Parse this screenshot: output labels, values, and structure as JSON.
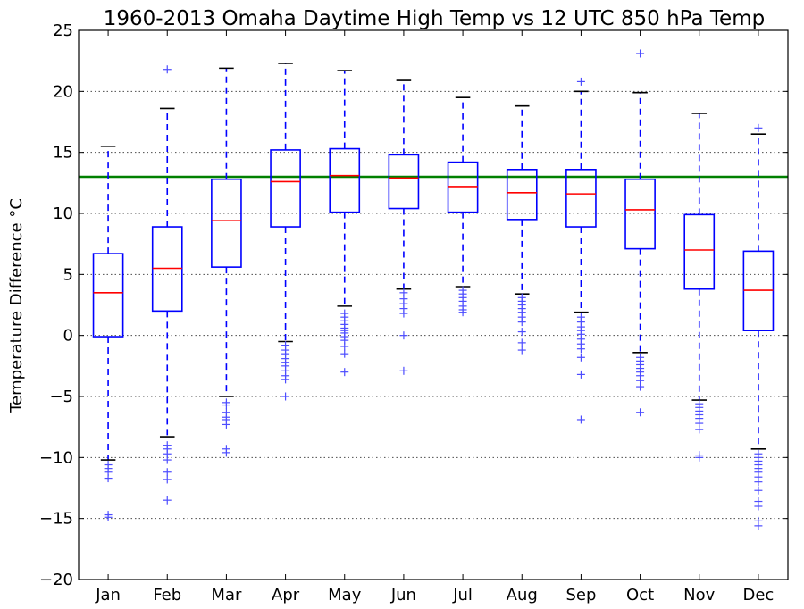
{
  "chart_data": {
    "type": "box",
    "title": "1960-2013 Omaha Daytime High Temp vs 12 UTC 850 hPa Temp",
    "xlabel": "",
    "ylabel": "Temperature Difference °C",
    "ylim": [
      -20,
      25
    ],
    "yticks": [
      -20,
      -15,
      -10,
      -5,
      0,
      5,
      10,
      15,
      20,
      25
    ],
    "grid": "horizontal dotted",
    "reference_line": {
      "y": 13.0,
      "color": "#008000"
    },
    "colors": {
      "box": "#0000ff",
      "median": "#ff0000",
      "whisker": "#0000ff",
      "cap": "#000000",
      "flier": "#4d4dff"
    },
    "categories": [
      "Jan",
      "Feb",
      "Mar",
      "Apr",
      "May",
      "Jun",
      "Jul",
      "Aug",
      "Sep",
      "Oct",
      "Nov",
      "Dec"
    ],
    "boxes": [
      {
        "label": "Jan",
        "whislo": -10.2,
        "q1": -0.1,
        "med": 3.5,
        "q3": 6.7,
        "whishi": 15.5,
        "fliers": [
          -10.6,
          -10.9,
          -11.2,
          -11.7,
          -14.7,
          -14.9
        ]
      },
      {
        "label": "Feb",
        "whislo": -8.3,
        "q1": 2.0,
        "med": 5.5,
        "q3": 8.9,
        "whishi": 18.6,
        "fliers": [
          21.8,
          -9.0,
          -9.3,
          -9.7,
          -10.2,
          -11.2,
          -11.8,
          -13.5
        ]
      },
      {
        "label": "Mar",
        "whislo": -5.0,
        "q1": 5.6,
        "med": 9.4,
        "q3": 12.8,
        "whishi": 21.9,
        "fliers": [
          -5.5,
          -5.7,
          -6.3,
          -6.7,
          -6.9,
          -7.3,
          -9.3,
          -9.6
        ]
      },
      {
        "label": "Apr",
        "whislo": -0.5,
        "q1": 8.9,
        "med": 12.6,
        "q3": 15.2,
        "whishi": 22.3,
        "fliers": [
          -0.8,
          -1.2,
          -1.5,
          -1.9,
          -2.2,
          -2.5,
          -2.9,
          -3.3,
          -3.6,
          -5.0
        ]
      },
      {
        "label": "May",
        "whislo": 2.4,
        "q1": 10.1,
        "med": 13.1,
        "q3": 15.3,
        "whishi": 21.7,
        "fliers": [
          1.8,
          1.5,
          1.2,
          0.9,
          0.6,
          0.4,
          0.2,
          -0.1,
          -0.4,
          -0.9,
          -1.5,
          -3.0
        ]
      },
      {
        "label": "Jun",
        "whislo": 3.8,
        "q1": 10.4,
        "med": 12.9,
        "q3": 14.8,
        "whishi": 20.9,
        "fliers": [
          3.5,
          3.0,
          2.6,
          2.2,
          1.8,
          0.0,
          -2.9
        ]
      },
      {
        "label": "Jul",
        "whislo": 4.0,
        "q1": 10.1,
        "med": 12.2,
        "q3": 14.2,
        "whishi": 19.5,
        "fliers": [
          3.7,
          3.4,
          3.1,
          2.8,
          2.4,
          2.1,
          1.9
        ]
      },
      {
        "label": "Aug",
        "whislo": 3.4,
        "q1": 9.5,
        "med": 11.7,
        "q3": 13.6,
        "whishi": 18.8,
        "fliers": [
          3.1,
          2.8,
          2.5,
          2.2,
          1.9,
          1.5,
          1.1,
          0.3,
          -0.6,
          -1.2
        ]
      },
      {
        "label": "Sep",
        "whislo": 1.9,
        "q1": 8.9,
        "med": 11.6,
        "q3": 13.6,
        "whishi": 20.0,
        "fliers": [
          20.8,
          1.5,
          1.1,
          0.7,
          0.4,
          0.1,
          -0.3,
          -0.7,
          -1.1,
          -1.8,
          -3.2,
          -6.9
        ]
      },
      {
        "label": "Oct",
        "whislo": -1.4,
        "q1": 7.1,
        "med": 10.3,
        "q3": 12.8,
        "whishi": 19.9,
        "fliers": [
          23.1,
          -1.8,
          -2.1,
          -2.4,
          -2.7,
          -3.0,
          -3.3,
          -3.7,
          -4.2,
          -6.3
        ]
      },
      {
        "label": "Nov",
        "whislo": -5.3,
        "q1": 3.8,
        "med": 7.0,
        "q3": 9.9,
        "whishi": 18.2,
        "fliers": [
          -5.6,
          -5.9,
          -6.2,
          -6.5,
          -6.8,
          -7.2,
          -7.7,
          -9.8,
          -10.0
        ]
      },
      {
        "label": "Dec",
        "whislo": -9.3,
        "q1": 0.4,
        "med": 3.7,
        "q3": 6.9,
        "whishi": 16.5,
        "fliers": [
          17.0,
          -9.7,
          -10.0,
          -10.3,
          -10.6,
          -10.9,
          -11.2,
          -11.6,
          -12.0,
          -12.7,
          -13.6,
          -14.0,
          -15.2,
          -15.6
        ]
      }
    ]
  }
}
